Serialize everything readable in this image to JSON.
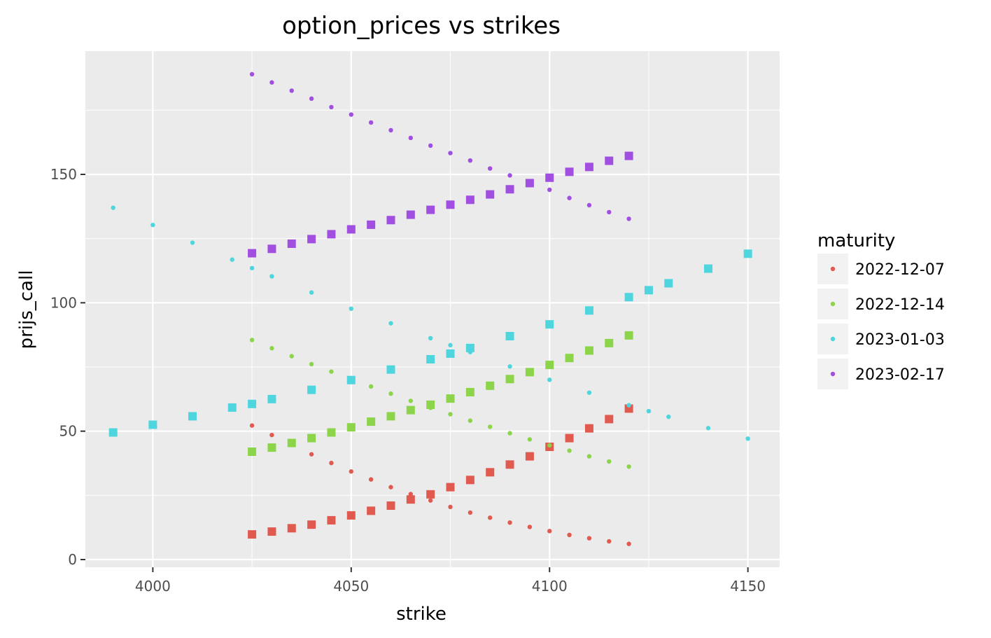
{
  "chart_data": {
    "type": "scatter",
    "title": "option_prices vs strikes",
    "xlabel": "strike",
    "ylabel": "prijs_call",
    "xlim": [
      3983,
      4158
    ],
    "ylim": [
      -3,
      198
    ],
    "xticks": [
      4000,
      4050,
      4100,
      4150
    ],
    "yticks": [
      0,
      50,
      100,
      150
    ],
    "grid": true,
    "legend": {
      "title": "maturity",
      "position": "right",
      "entries": [
        {
          "label": "2022-12-07",
          "color": "#E15A4F"
        },
        {
          "label": "2022-12-14",
          "color": "#8CD54A"
        },
        {
          "label": "2023-01-03",
          "color": "#4FD5DE"
        },
        {
          "label": "2023-02-17",
          "color": "#A04FE0"
        }
      ]
    },
    "series": [
      {
        "name": "2022-12-07",
        "color": "#E15A4F",
        "shape": "circle",
        "x": [
          4025,
          4030,
          4035,
          4040,
          4045,
          4050,
          4055,
          4060,
          4065,
          4070,
          4075,
          4080,
          4085,
          4090,
          4095,
          4100,
          4105,
          4110,
          4115,
          4120
        ],
        "y": [
          52.2,
          48.5,
          44.8,
          41.0,
          37.6,
          34.3,
          31.2,
          28.2,
          25.5,
          23.0,
          20.5,
          18.3,
          16.3,
          14.4,
          12.7,
          11.1,
          9.6,
          8.3,
          7.1,
          6.1
        ]
      },
      {
        "name": "2022-12-07",
        "color": "#E15A4F",
        "shape": "square",
        "x": [
          4025,
          4030,
          4035,
          4040,
          4045,
          4050,
          4055,
          4060,
          4065,
          4070,
          4075,
          4080,
          4085,
          4090,
          4095,
          4100,
          4105,
          4110,
          4115,
          4120
        ],
        "y": [
          9.8,
          10.9,
          12.2,
          13.6,
          15.3,
          17.2,
          19.0,
          21.0,
          23.4,
          25.4,
          28.2,
          31.0,
          34.0,
          37.0,
          40.2,
          43.9,
          47.3,
          51.1,
          54.7,
          58.8
        ]
      },
      {
        "name": "2022-12-14",
        "color": "#8CD54A",
        "shape": "circle",
        "x": [
          4025,
          4030,
          4035,
          4040,
          4045,
          4050,
          4055,
          4060,
          4065,
          4070,
          4075,
          4080,
          4085,
          4090,
          4095,
          4100,
          4105,
          4110,
          4115,
          4120
        ],
        "y": [
          85.5,
          82.3,
          79.2,
          76.1,
          73.2,
          70.3,
          67.4,
          64.6,
          61.8,
          59.1,
          56.6,
          54.1,
          51.7,
          49.2,
          46.8,
          44.5,
          42.4,
          40.2,
          38.2,
          36.2
        ]
      },
      {
        "name": "2022-12-14",
        "color": "#8CD54A",
        "shape": "square",
        "x": [
          4025,
          4030,
          4035,
          4040,
          4045,
          4050,
          4055,
          4060,
          4065,
          4070,
          4075,
          4080,
          4085,
          4090,
          4095,
          4100,
          4105,
          4110,
          4115,
          4120
        ],
        "y": [
          42.0,
          43.6,
          45.4,
          47.3,
          49.5,
          51.5,
          53.7,
          55.8,
          58.2,
          60.3,
          62.7,
          65.2,
          67.7,
          70.3,
          73.0,
          75.8,
          78.5,
          81.4,
          84.3,
          87.3
        ]
      },
      {
        "name": "2023-01-03",
        "color": "#4FD5DE",
        "shape": "circle",
        "x": [
          3990,
          4000,
          4010,
          4020,
          4025,
          4030,
          4040,
          4050,
          4060,
          4070,
          4075,
          4080,
          4090,
          4100,
          4110,
          4120,
          4125,
          4130,
          4140,
          4150
        ],
        "y": [
          137.0,
          130.3,
          123.4,
          116.8,
          113.5,
          110.3,
          104.0,
          97.7,
          92.0,
          86.2,
          83.5,
          80.8,
          75.2,
          70.0,
          65.0,
          60.1,
          57.8,
          55.6,
          51.2,
          47.1
        ]
      },
      {
        "name": "2023-01-03",
        "color": "#4FD5DE",
        "shape": "square",
        "x": [
          3990,
          4000,
          4010,
          4020,
          4025,
          4030,
          4040,
          4050,
          4060,
          4070,
          4075,
          4080,
          4090,
          4100,
          4110,
          4120,
          4125,
          4130,
          4140,
          4150
        ],
        "y": [
          49.5,
          52.5,
          55.8,
          59.2,
          60.6,
          62.5,
          66.1,
          69.9,
          74.0,
          78.0,
          80.2,
          82.4,
          87.0,
          91.6,
          97.0,
          102.2,
          104.9,
          107.6,
          113.3,
          119.1
        ]
      },
      {
        "name": "2023-02-17",
        "color": "#A04FE0",
        "shape": "circle",
        "x": [
          4025,
          4030,
          4035,
          4040,
          4045,
          4050,
          4055,
          4060,
          4065,
          4070,
          4075,
          4080,
          4085,
          4090,
          4100,
          4105,
          4110,
          4115,
          4120
        ],
        "y": [
          189.0,
          185.8,
          182.6,
          179.5,
          176.2,
          173.3,
          170.2,
          167.2,
          164.2,
          161.2,
          158.3,
          155.4,
          152.3,
          149.6,
          144.0,
          140.8,
          138.0,
          135.3,
          132.7
        ]
      },
      {
        "name": "2023-02-17",
        "color": "#A04FE0",
        "shape": "square",
        "x": [
          4025,
          4030,
          4035,
          4040,
          4045,
          4050,
          4055,
          4060,
          4065,
          4070,
          4075,
          4080,
          4085,
          4090,
          4095,
          4100,
          4105,
          4110,
          4115,
          4120
        ],
        "y": [
          119.3,
          121.0,
          123.0,
          124.8,
          126.7,
          128.6,
          130.4,
          132.2,
          134.3,
          136.2,
          138.2,
          140.1,
          142.2,
          144.2,
          146.6,
          148.7,
          151.0,
          152.9,
          155.3,
          157.2
        ]
      }
    ]
  }
}
